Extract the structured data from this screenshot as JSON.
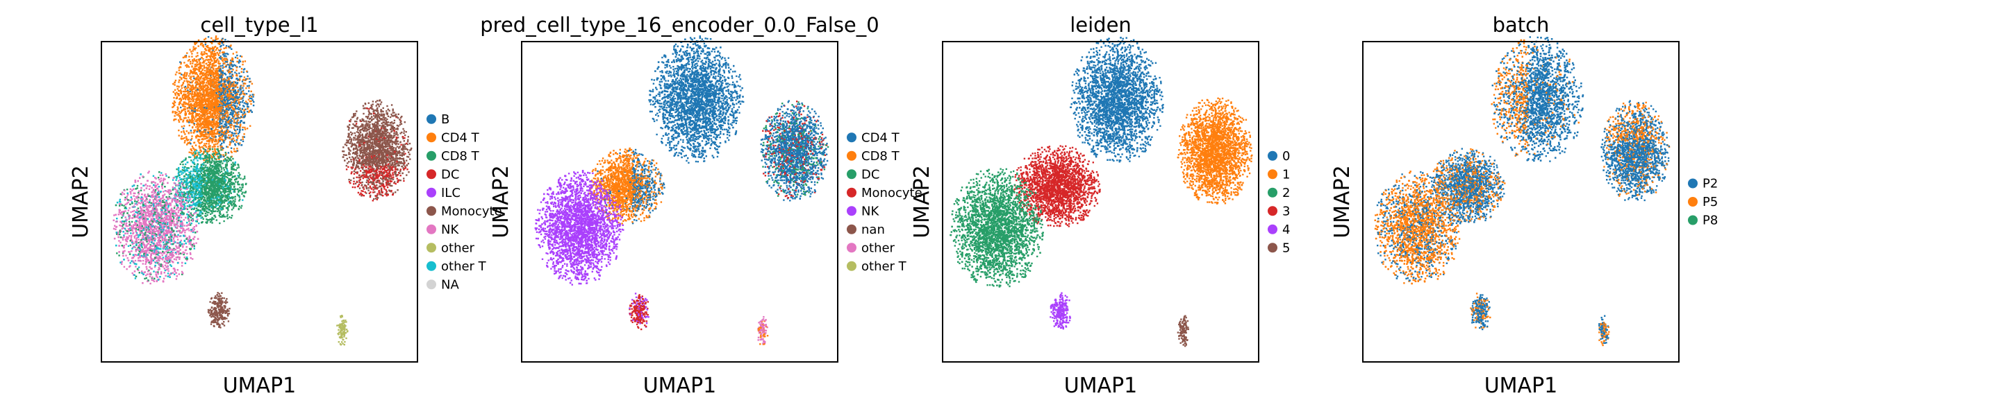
{
  "chart_data": [
    {
      "type": "scatter",
      "title": "cell_type_l1",
      "xlabel": "UMAP1",
      "ylabel": "UMAP2",
      "legend_position": "right",
      "grid": false,
      "legend": [
        {
          "label": "B",
          "color": "#1f77b4"
        },
        {
          "label": "CD4 T",
          "color": "#ff7f0e"
        },
        {
          "label": "CD8 T",
          "color": "#279e68"
        },
        {
          "label": "DC",
          "color": "#d62728"
        },
        {
          "label": "ILC",
          "color": "#aa40fc"
        },
        {
          "label": "Monocyte",
          "color": "#8c564b"
        },
        {
          "label": "NK",
          "color": "#e377c2"
        },
        {
          "label": "other",
          "color": "#b5bd61"
        },
        {
          "label": "other T",
          "color": "#17becf"
        },
        {
          "label": "NA",
          "color": "#d3d3d3"
        }
      ],
      "clusters": [
        {
          "category": "CD4 T",
          "center": [
            0.35,
            0.82
          ],
          "radius": [
            0.13,
            0.2
          ],
          "mix": [
            "B"
          ],
          "mix_side": "right"
        },
        {
          "category": "Monocyte",
          "center": [
            0.87,
            0.66
          ],
          "radius": [
            0.11,
            0.16
          ],
          "mix": [
            "DC"
          ],
          "mix_side": "bottom"
        },
        {
          "category": "CD8 T",
          "center": [
            0.34,
            0.55
          ],
          "radius": [
            0.12,
            0.12
          ],
          "mix": [
            "other T"
          ],
          "mix_side": "left"
        },
        {
          "category": "NK",
          "center": [
            0.17,
            0.42
          ],
          "radius": [
            0.14,
            0.18
          ],
          "mix": [
            "CD8 T",
            "other T"
          ],
          "mix_side": "none"
        },
        {
          "category": "Monocyte",
          "center": [
            0.37,
            0.16
          ],
          "radius": [
            0.035,
            0.06
          ],
          "mix": [],
          "mix_side": "none"
        },
        {
          "category": "other",
          "center": [
            0.76,
            0.1
          ],
          "radius": [
            0.018,
            0.05
          ],
          "mix": [],
          "mix_side": "none"
        }
      ]
    },
    {
      "type": "scatter",
      "title": "pred_cell_type_16_encoder_0.0_False_0",
      "xlabel": "UMAP1",
      "ylabel": "UMAP2",
      "legend_position": "right",
      "grid": false,
      "legend": [
        {
          "label": "CD4 T",
          "color": "#1f77b4"
        },
        {
          "label": "CD8 T",
          "color": "#ff7f0e"
        },
        {
          "label": "DC",
          "color": "#279e68"
        },
        {
          "label": "Monocyte",
          "color": "#d62728"
        },
        {
          "label": "NK",
          "color": "#aa40fc"
        },
        {
          "label": "nan",
          "color": "#8c564b"
        },
        {
          "label": "other",
          "color": "#e377c2"
        },
        {
          "label": "other T",
          "color": "#b5bd61"
        }
      ],
      "clusters": [
        {
          "category": "CD4 T",
          "center": [
            0.55,
            0.82
          ],
          "radius": [
            0.15,
            0.2
          ],
          "mix": [],
          "mix_side": "none"
        },
        {
          "category": "CD4 T",
          "center": [
            0.86,
            0.66
          ],
          "radius": [
            0.11,
            0.16
          ],
          "mix": [
            "Monocyte",
            "DC"
          ],
          "mix_side": "none"
        },
        {
          "category": "CD8 T",
          "center": [
            0.33,
            0.55
          ],
          "radius": [
            0.12,
            0.12
          ],
          "mix": [
            "CD4 T"
          ],
          "mix_side": "right"
        },
        {
          "category": "NK",
          "center": [
            0.18,
            0.42
          ],
          "radius": [
            0.14,
            0.18
          ],
          "mix": [],
          "mix_side": "none"
        },
        {
          "category": "Monocyte",
          "center": [
            0.37,
            0.16
          ],
          "radius": [
            0.035,
            0.06
          ],
          "mix": [
            "NK"
          ],
          "mix_side": "none"
        },
        {
          "category": "other",
          "center": [
            0.76,
            0.1
          ],
          "radius": [
            0.018,
            0.05
          ],
          "mix": [
            "CD8 T"
          ],
          "mix_side": "none"
        }
      ]
    },
    {
      "type": "scatter",
      "title": "leiden",
      "xlabel": "UMAP1",
      "ylabel": "UMAP2",
      "legend_position": "right",
      "grid": false,
      "legend": [
        {
          "label": "0",
          "color": "#1f77b4"
        },
        {
          "label": "1",
          "color": "#ff7f0e"
        },
        {
          "label": "2",
          "color": "#279e68"
        },
        {
          "label": "3",
          "color": "#d62728"
        },
        {
          "label": "4",
          "color": "#aa40fc"
        },
        {
          "label": "5",
          "color": "#8c564b"
        }
      ],
      "clusters": [
        {
          "category": "0",
          "center": [
            0.55,
            0.82
          ],
          "radius": [
            0.15,
            0.2
          ],
          "mix": [],
          "mix_side": "none"
        },
        {
          "category": "1",
          "center": [
            0.86,
            0.66
          ],
          "radius": [
            0.12,
            0.17
          ],
          "mix": [],
          "mix_side": "none"
        },
        {
          "category": "3",
          "center": [
            0.36,
            0.55
          ],
          "radius": [
            0.14,
            0.13
          ],
          "mix": [],
          "mix_side": "none"
        },
        {
          "category": "2",
          "center": [
            0.17,
            0.42
          ],
          "radius": [
            0.15,
            0.19
          ],
          "mix": [],
          "mix_side": "none"
        },
        {
          "category": "4",
          "center": [
            0.37,
            0.16
          ],
          "radius": [
            0.035,
            0.06
          ],
          "mix": [],
          "mix_side": "none"
        },
        {
          "category": "5",
          "center": [
            0.76,
            0.1
          ],
          "radius": [
            0.018,
            0.05
          ],
          "mix": [],
          "mix_side": "none"
        }
      ]
    },
    {
      "type": "scatter",
      "title": "batch",
      "xlabel": "UMAP1",
      "ylabel": "UMAP2",
      "legend_position": "right",
      "grid": false,
      "legend": [
        {
          "label": "P2",
          "color": "#1f77b4"
        },
        {
          "label": "P5",
          "color": "#ff7f0e"
        },
        {
          "label": "P8",
          "color": "#279e68"
        }
      ],
      "clusters": [
        {
          "category": "P2",
          "center": [
            0.55,
            0.82
          ],
          "radius": [
            0.15,
            0.2
          ],
          "mix": [
            "P5"
          ],
          "mix_side": "left"
        },
        {
          "category": "P2",
          "center": [
            0.86,
            0.66
          ],
          "radius": [
            0.11,
            0.16
          ],
          "mix": [
            "P5"
          ],
          "mix_side": "top"
        },
        {
          "category": "P2",
          "center": [
            0.33,
            0.55
          ],
          "radius": [
            0.12,
            0.12
          ],
          "mix": [
            "P5"
          ],
          "mix_side": "none"
        },
        {
          "category": "P5",
          "center": [
            0.17,
            0.42
          ],
          "radius": [
            0.14,
            0.18
          ],
          "mix": [
            "P2"
          ],
          "mix_side": "none"
        },
        {
          "category": "P2",
          "center": [
            0.37,
            0.16
          ],
          "radius": [
            0.035,
            0.06
          ],
          "mix": [
            "P5"
          ],
          "mix_side": "none"
        },
        {
          "category": "P2",
          "center": [
            0.76,
            0.1
          ],
          "radius": [
            0.018,
            0.05
          ],
          "mix": [
            "P5"
          ],
          "mix_side": "none"
        }
      ]
    }
  ]
}
